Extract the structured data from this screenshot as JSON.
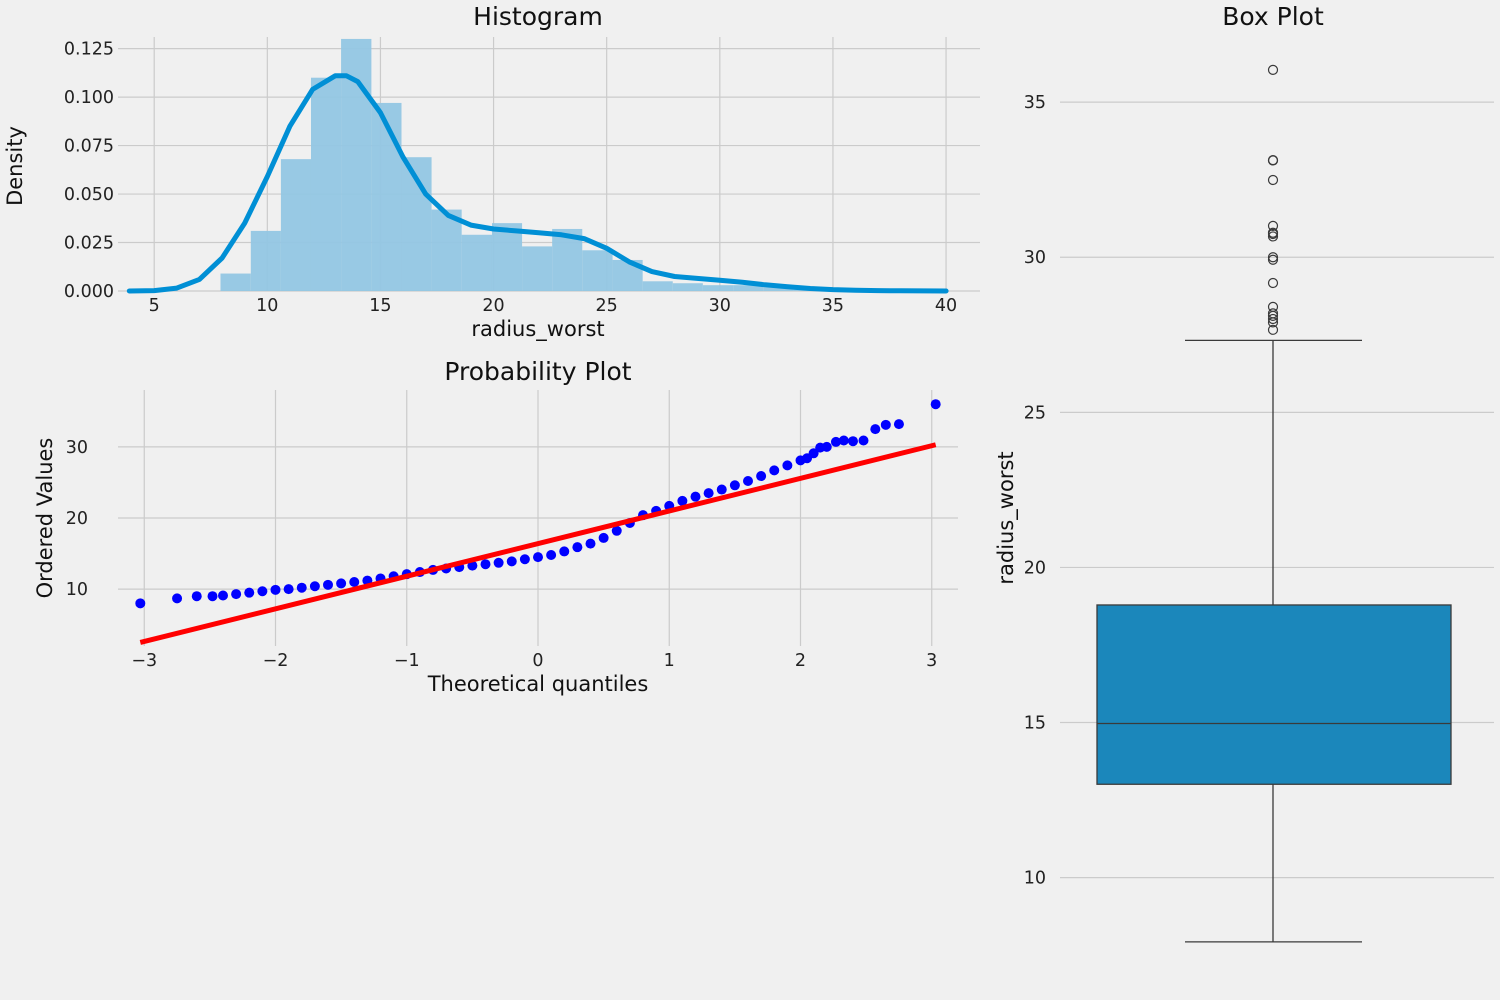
{
  "colors": {
    "background": "#f0f0f0",
    "grid": "#cbcbcb",
    "hist_bar": "#92c6e3",
    "kde_line": "#008fd5",
    "qq_points": "#0000ff",
    "qq_line": "#ff0000",
    "box_fill": "#1b87bb",
    "box_line": "#3a3a3a"
  },
  "chart_data": [
    {
      "type": "bar",
      "title": "Histogram",
      "xlabel": "radius_worst",
      "ylabel": "Density",
      "xlim": [
        3.4,
        41.5
      ],
      "ylim": [
        0,
        0.131
      ],
      "xticks": [
        5,
        10,
        15,
        20,
        25,
        30,
        35,
        40
      ],
      "xtick_labels": [
        "5",
        "10",
        "15",
        "20",
        "25",
        "30",
        "35",
        "40"
      ],
      "yticks": [
        0,
        0.025,
        0.05,
        0.075,
        0.1,
        0.125
      ],
      "ytick_labels": [
        "0.000",
        "0.025",
        "0.050",
        "0.075",
        "0.100",
        "0.125"
      ],
      "grid": true,
      "bin_edges": [
        7.93,
        9.27,
        10.6,
        11.93,
        13.26,
        14.6,
        15.93,
        17.26,
        18.59,
        19.93,
        21.26,
        22.59,
        23.92,
        25.26,
        26.59,
        27.92,
        29.25,
        30.59,
        31.92,
        33.25,
        34.58,
        35.92,
        37.25
      ],
      "densities": [
        0.009,
        0.031,
        0.068,
        0.11,
        0.13,
        0.097,
        0.069,
        0.042,
        0.029,
        0.035,
        0.023,
        0.032,
        0.021,
        0.016,
        0.005,
        0.004,
        0.003,
        0.003,
        0.002,
        0.0015,
        0.0,
        0.001
      ],
      "kde": {
        "x": [
          3.9,
          5,
          6,
          7,
          8,
          9,
          10,
          11,
          12,
          13,
          13.5,
          14,
          15,
          16,
          17,
          18,
          19,
          20,
          21,
          22,
          23,
          24,
          25,
          26,
          27,
          28,
          29,
          30,
          31,
          32,
          33,
          34,
          35,
          36,
          37,
          38,
          39,
          40
        ],
        "y": [
          0.0,
          0.0002,
          0.0015,
          0.006,
          0.017,
          0.035,
          0.059,
          0.085,
          0.104,
          0.111,
          0.111,
          0.108,
          0.092,
          0.069,
          0.05,
          0.039,
          0.034,
          0.032,
          0.031,
          0.03,
          0.029,
          0.027,
          0.022,
          0.015,
          0.01,
          0.0075,
          0.0065,
          0.0055,
          0.0045,
          0.0032,
          0.0022,
          0.0013,
          0.0007,
          0.0004,
          0.0002,
          0.0001,
          5e-05,
          0.0
        ]
      }
    },
    {
      "type": "scatter",
      "title": "Probability Plot",
      "xlabel": "Theoretical quantiles",
      "ylabel": "Ordered Values",
      "xlim": [
        -3.2,
        3.2
      ],
      "ylim": [
        2.0,
        38.0
      ],
      "xticks": [
        -3,
        -2,
        -1,
        0,
        1,
        2,
        3
      ],
      "xtick_labels": [
        "−3",
        "−2",
        "−1",
        "0",
        "1",
        "2",
        "3"
      ],
      "yticks": [
        10,
        20,
        30
      ],
      "ytick_labels": [
        "10",
        "20",
        "30"
      ],
      "grid": true,
      "points": {
        "x": [
          -3.03,
          -2.75,
          -2.6,
          -2.48,
          -2.4,
          -2.3,
          -2.2,
          -2.1,
          -2.0,
          -1.9,
          -1.8,
          -1.7,
          -1.6,
          -1.5,
          -1.4,
          -1.3,
          -1.2,
          -1.1,
          -1.0,
          -0.9,
          -0.8,
          -0.7,
          -0.6,
          -0.5,
          -0.4,
          -0.3,
          -0.2,
          -0.1,
          0.0,
          0.1,
          0.2,
          0.3,
          0.4,
          0.5,
          0.6,
          0.7,
          0.8,
          0.9,
          1.0,
          1.1,
          1.2,
          1.3,
          1.4,
          1.5,
          1.6,
          1.7,
          1.8,
          1.9,
          2.0,
          2.05,
          2.1,
          2.15,
          2.2,
          2.27,
          2.33,
          2.4,
          2.48,
          2.57,
          2.65,
          2.75,
          3.03
        ],
        "y": [
          8.0,
          8.7,
          9.0,
          9.0,
          9.1,
          9.3,
          9.5,
          9.7,
          9.9,
          10.0,
          10.2,
          10.4,
          10.6,
          10.8,
          11.0,
          11.2,
          11.5,
          11.8,
          12.1,
          12.4,
          12.7,
          12.9,
          13.1,
          13.3,
          13.5,
          13.7,
          13.9,
          14.2,
          14.5,
          14.8,
          15.3,
          15.9,
          16.4,
          17.2,
          18.2,
          19.3,
          20.4,
          21.0,
          21.7,
          22.4,
          23.0,
          23.5,
          24.0,
          24.6,
          25.2,
          25.9,
          26.7,
          27.4,
          28.1,
          28.4,
          29.1,
          29.9,
          30.0,
          30.7,
          30.9,
          30.8,
          30.9,
          32.5,
          33.1,
          33.2,
          36.0
        ]
      },
      "fit_line": {
        "x": [
          -3.03,
          3.03
        ],
        "y": [
          2.5,
          30.3
        ]
      }
    },
    {
      "type": "box",
      "title": "Box Plot",
      "xlabel": "",
      "ylabel": "radius_worst",
      "ylim": [
        6.7,
        37.1
      ],
      "yticks": [
        10,
        15,
        20,
        25,
        30,
        35
      ],
      "ytick_labels": [
        "10",
        "15",
        "20",
        "25",
        "30",
        "35"
      ],
      "grid": true,
      "whisker_low": 7.93,
      "q1": 13.01,
      "median": 14.97,
      "q3": 18.79,
      "whisker_high": 27.32,
      "outliers": [
        27.66,
        27.9,
        28.01,
        28.11,
        28.19,
        28.4,
        29.17,
        29.92,
        30.0,
        30.67,
        30.75,
        30.79,
        31.01,
        32.49,
        33.12,
        33.13,
        36.04
      ]
    }
  ]
}
